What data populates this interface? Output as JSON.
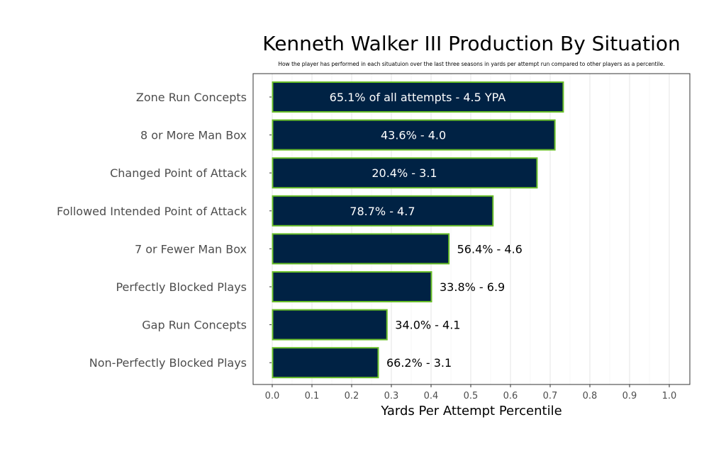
{
  "chart_data": {
    "type": "bar",
    "orientation": "horizontal",
    "title": "Kenneth Walker III Production By Situation",
    "subtitle": "How the player has performed in each situatuion over the last three seasons in yards per attempt run compared to other players as a percentile.",
    "xlabel": "Yards Per Attempt Percentile",
    "ylabel": "",
    "xlim": [
      0,
      1
    ],
    "xticks": [
      "0.0",
      "0.1",
      "0.2",
      "0.3",
      "0.4",
      "0.5",
      "0.6",
      "0.7",
      "0.8",
      "0.9",
      "1.0"
    ],
    "grid": true,
    "categories": [
      "Zone Run Concepts",
      "8 or More Man Box",
      "Changed Point of Attack",
      "Followed Intended Point of Attack",
      "7 or Fewer Man Box",
      "Perfectly Blocked Plays",
      "Gap Run Concepts",
      "Non-Perfectly Blocked Plays"
    ],
    "values": [
      0.732,
      0.711,
      0.666,
      0.555,
      0.444,
      0.4,
      0.288,
      0.266
    ],
    "labels": [
      "65.1% of all attempts - 4.5 YPA",
      "43.6% - 4.0",
      "20.4% - 3.1",
      "78.7% - 4.7",
      "56.4% - 4.6",
      "33.8% - 6.9",
      "34.0% - 4.1",
      "66.2% - 3.1"
    ],
    "colors": {
      "bar_fill": "#002244",
      "bar_outline": "#69BE28",
      "label_inside": "#ffffff",
      "label_outside": "#000000"
    }
  }
}
